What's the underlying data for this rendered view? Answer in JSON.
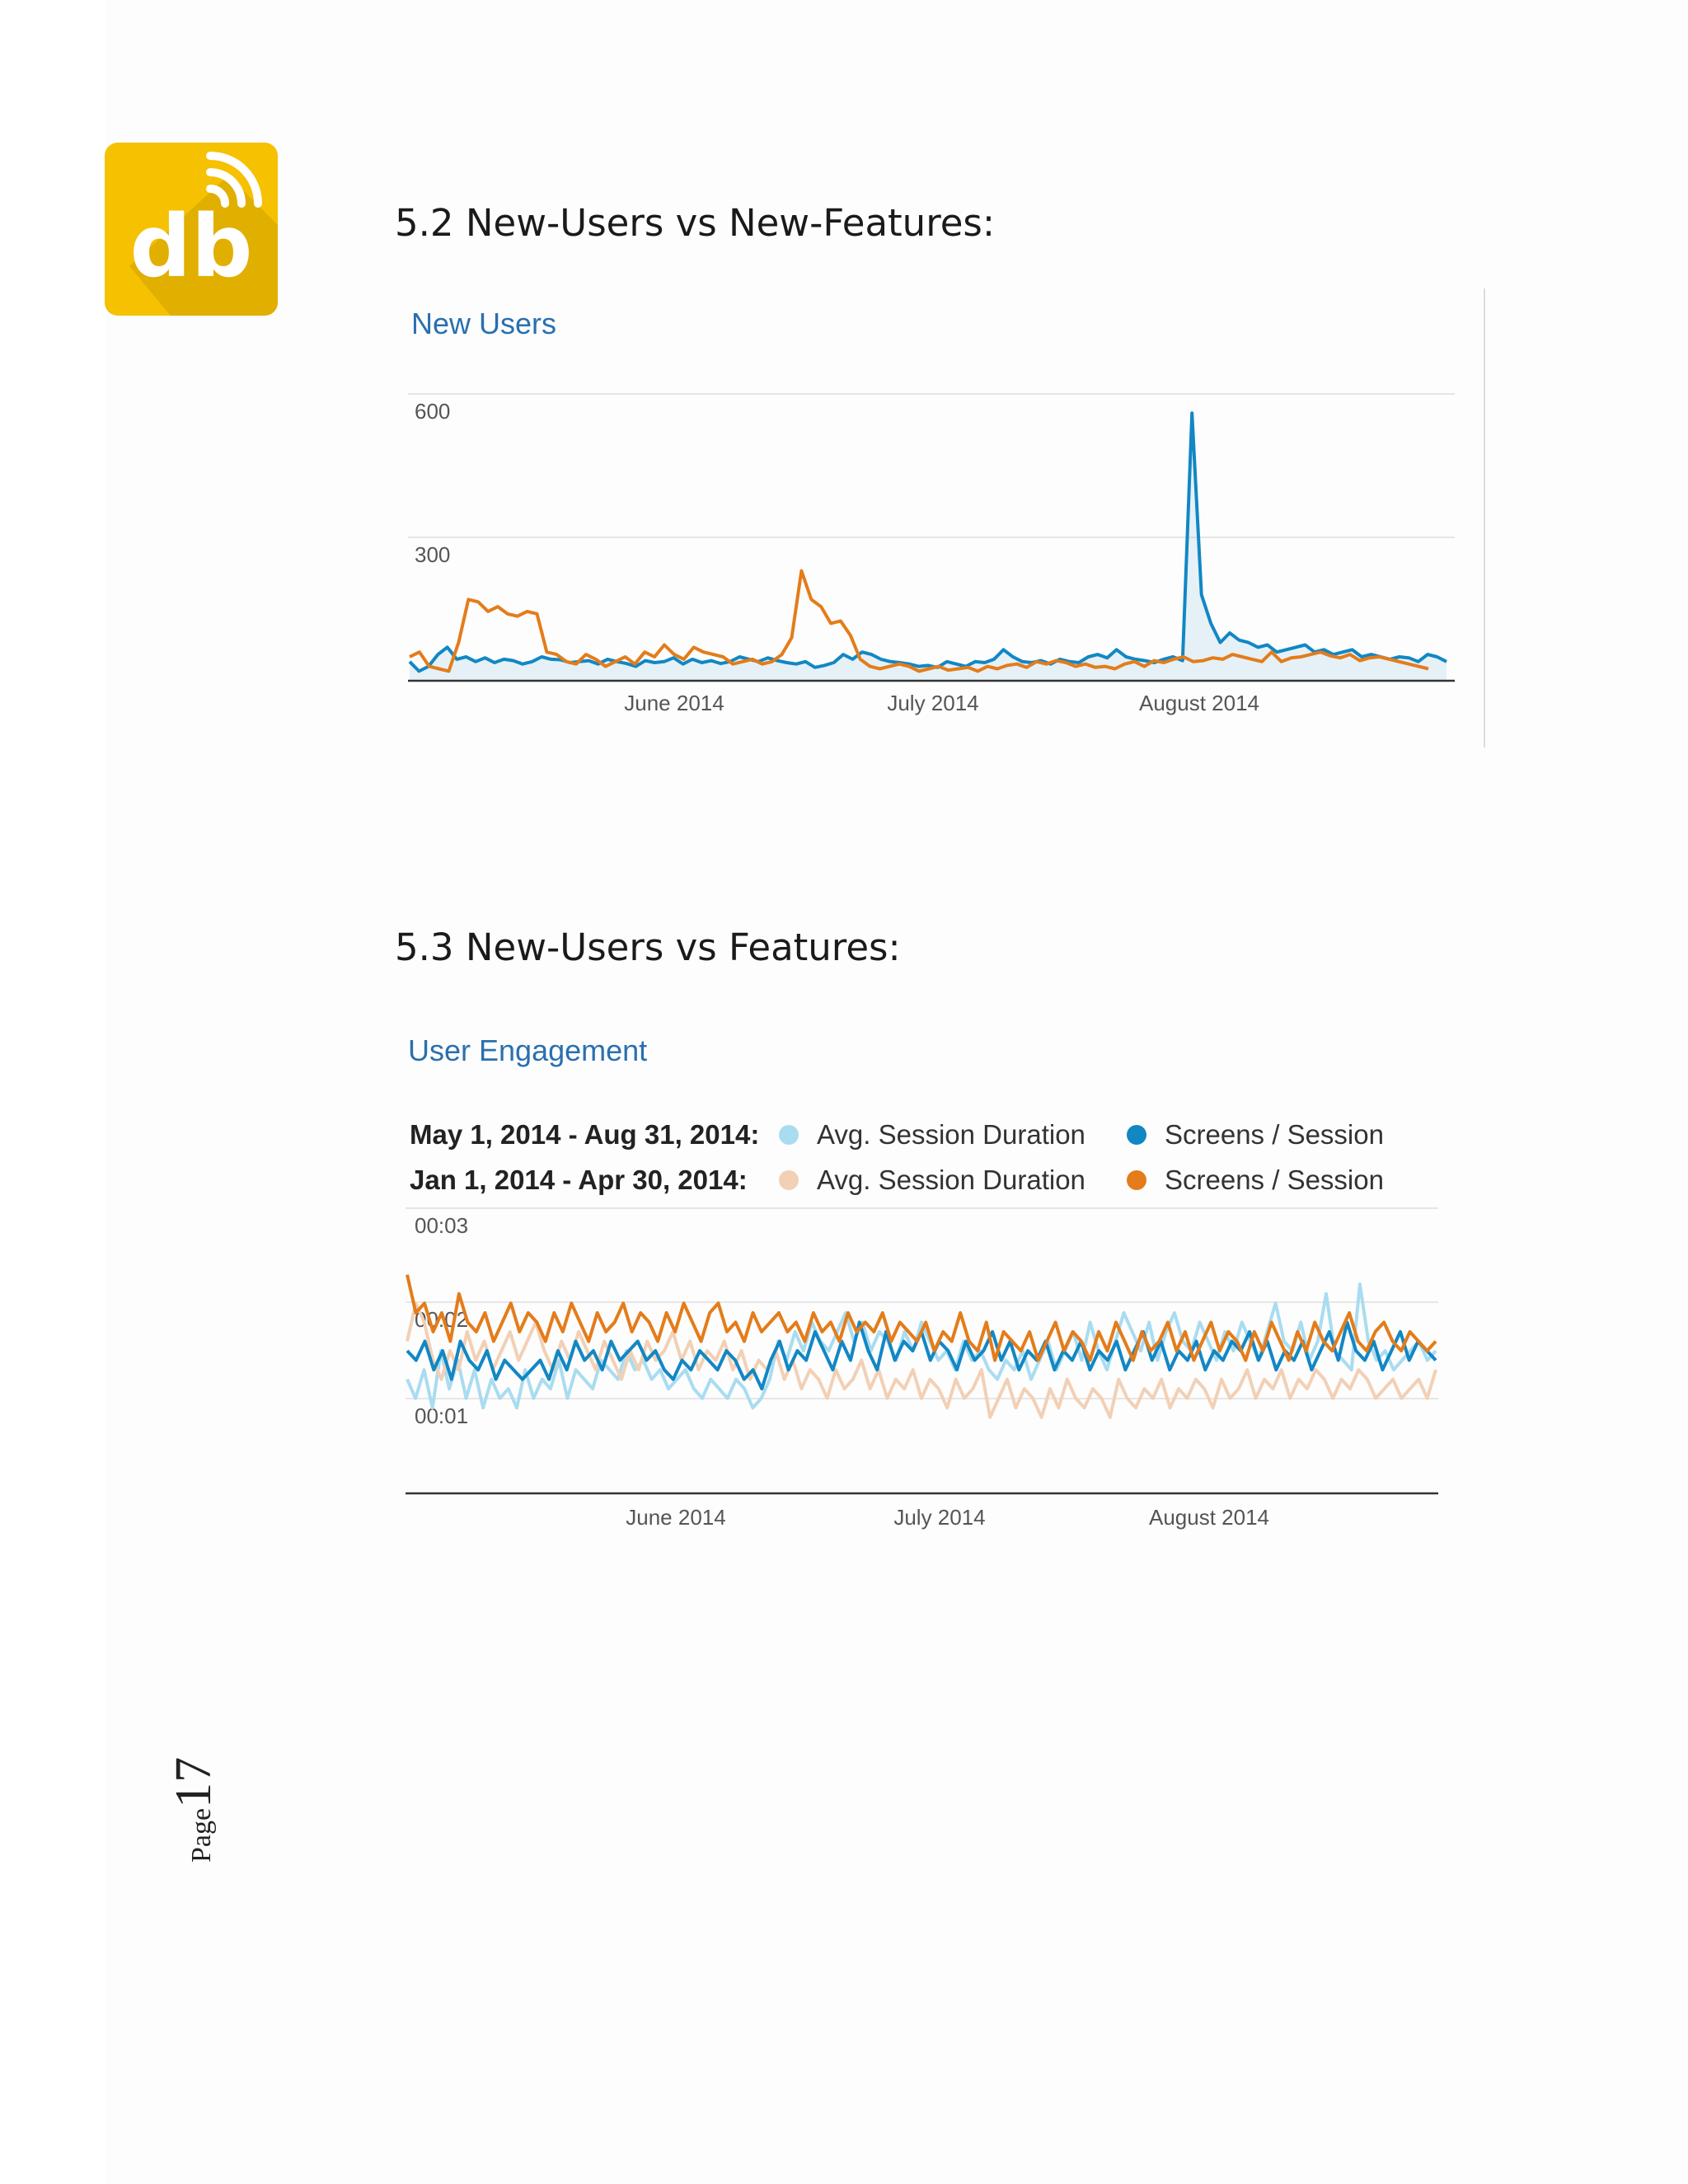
{
  "colors": {
    "logo_yellow": "#f5c100",
    "logo_shadow": "#d9a800",
    "chart_title_blue": "#2a6fb0",
    "series_blue": "#1287c4",
    "series_orange": "#e47c1a",
    "series_light_blue": "#a9dcf0",
    "series_light_orange": "#f2d0b5"
  },
  "logo": {
    "text": "db",
    "icon": "wifi-signal-icon"
  },
  "section_52": {
    "heading": "5.2  New-Users vs New-Features:"
  },
  "section_53": {
    "heading": "5.3 New-Users vs Features:"
  },
  "page_number": {
    "word": "Page",
    "number": "17"
  },
  "chart_data": [
    {
      "type": "line",
      "title": "New Users",
      "x_ticks": [
        "June 2014",
        "July 2014",
        "August 2014"
      ],
      "y_ticks": [
        "600",
        "300"
      ],
      "ylim": [
        0,
        600
      ],
      "grid": true,
      "series": [
        {
          "color": "#1287c4",
          "area": true,
          "values": [
            40,
            20,
            30,
            55,
            70,
            45,
            50,
            40,
            48,
            38,
            45,
            42,
            35,
            40,
            50,
            45,
            44,
            38,
            40,
            42,
            35,
            45,
            40,
            36,
            30,
            42,
            38,
            40,
            48,
            35,
            45,
            38,
            42,
            36,
            40,
            50,
            45,
            40,
            48,
            42,
            38,
            35,
            40,
            28,
            32,
            38,
            55,
            45,
            60,
            55,
            45,
            40,
            38,
            35,
            30,
            32,
            28,
            40,
            35,
            30,
            40,
            38,
            45,
            65,
            50,
            40,
            38,
            42,
            35,
            45,
            40,
            38,
            50,
            55,
            48,
            65,
            50,
            45,
            42,
            38,
            45,
            50,
            42,
            560,
            180,
            120,
            80,
            100,
            85,
            80,
            70,
            75,
            60,
            65,
            70,
            75,
            60,
            65,
            55,
            60,
            65,
            50,
            55,
            50,
            45,
            50,
            48,
            40,
            55,
            50,
            40
          ]
        },
        {
          "color": "#e47c1a",
          "area": false,
          "values": [
            50,
            60,
            30,
            25,
            20,
            80,
            170,
            165,
            145,
            155,
            140,
            135,
            145,
            140,
            60,
            55,
            40,
            35,
            55,
            45,
            30,
            40,
            50,
            35,
            60,
            50,
            75,
            55,
            45,
            70,
            60,
            55,
            50,
            35,
            40,
            45,
            35,
            40,
            55,
            90,
            230,
            170,
            155,
            120,
            125,
            95,
            45,
            30,
            25,
            30,
            35,
            30,
            20,
            25,
            30,
            22,
            25,
            28,
            20,
            30,
            25,
            32,
            35,
            28,
            40,
            35,
            42,
            38,
            30,
            35,
            28,
            30,
            25,
            35,
            40,
            30,
            42,
            38,
            45,
            50,
            40,
            42,
            48,
            45,
            55,
            50,
            45,
            40,
            60,
            40,
            48,
            50,
            55,
            60,
            52,
            48,
            55,
            42,
            48,
            50,
            45,
            40,
            35,
            30,
            25
          ]
        }
      ]
    },
    {
      "type": "line",
      "title": "User Engagement",
      "legend": [
        {
          "range": "May 1, 2014 - Aug 31, 2014:",
          "items": [
            {
              "name": "Avg. Session Duration",
              "color": "#a9dcf0"
            },
            {
              "name": "Screens / Session",
              "color": "#1287c4"
            }
          ]
        },
        {
          "range": "Jan 1, 2014 - Apr 30, 2014:",
          "items": [
            {
              "name": "Avg. Session Duration",
              "color": "#f2d0b5"
            },
            {
              "name": "Screens / Session",
              "color": "#e47c1a"
            }
          ]
        }
      ],
      "x_ticks": [
        "June 2014",
        "July 2014",
        "August 2014"
      ],
      "y_ticks": [
        "00:03",
        "00:02",
        "00:01"
      ],
      "ylim_seconds": [
        0,
        3
      ],
      "grid": true,
      "series": [
        {
          "name": "Avg. Session Duration",
          "period": "May 1, 2014 - Aug 31, 2014",
          "color": "#a9dcf0",
          "values_seconds": [
            1.2,
            1.0,
            1.3,
            0.9,
            1.5,
            1.1,
            1.4,
            1.0,
            1.3,
            0.9,
            1.2,
            1.0,
            1.1,
            0.9,
            1.3,
            1.0,
            1.2,
            1.1,
            1.4,
            1.0,
            1.3,
            1.2,
            1.1,
            1.4,
            1.3,
            1.2,
            1.5,
            1.3,
            1.4,
            1.2,
            1.3,
            1.1,
            1.2,
            1.3,
            1.1,
            1.0,
            1.2,
            1.1,
            1.0,
            1.2,
            1.1,
            0.9,
            1.0,
            1.2,
            1.6,
            1.4,
            1.7,
            1.5,
            1.8,
            1.6,
            1.5,
            1.7,
            1.9,
            1.6,
            1.8,
            1.5,
            1.7,
            1.6,
            1.4,
            1.7,
            1.5,
            1.8,
            1.6,
            1.4,
            1.5,
            1.3,
            1.6,
            1.4,
            1.5,
            1.3,
            1.2,
            1.4,
            1.3,
            1.5,
            1.2,
            1.4,
            1.6,
            1.3,
            1.5,
            1.7,
            1.4,
            1.8,
            1.5,
            1.3,
            1.6,
            1.9,
            1.7,
            1.5,
            1.8,
            1.4,
            1.7,
            1.9,
            1.6,
            1.5,
            1.8,
            1.6,
            1.4,
            1.7,
            1.5,
            1.8,
            1.6,
            1.4,
            1.7,
            2.0,
            1.6,
            1.5,
            1.8,
            1.4,
            1.6,
            2.1,
            1.5,
            1.4,
            1.3,
            2.2,
            1.6,
            1.4,
            1.5,
            1.3,
            1.4,
            1.5,
            1.6,
            1.4,
            1.5
          ]
        },
        {
          "name": "Avg. Session Duration",
          "period": "Jan 1, 2014 - Apr 30, 2014",
          "color": "#f2d0b5",
          "values_seconds": [
            1.6,
            2.0,
            1.8,
            1.4,
            1.2,
            1.5,
            1.3,
            1.7,
            1.4,
            1.6,
            1.3,
            1.5,
            1.7,
            1.4,
            1.6,
            1.8,
            1.5,
            1.3,
            1.6,
            1.4,
            1.7,
            1.5,
            1.3,
            1.6,
            1.4,
            1.2,
            1.5,
            1.3,
            1.6,
            1.4,
            1.5,
            1.7,
            1.4,
            1.6,
            1.3,
            1.5,
            1.4,
            1.6,
            1.3,
            1.5,
            1.2,
            1.4,
            1.3,
            1.5,
            1.2,
            1.4,
            1.1,
            1.3,
            1.2,
            1.0,
            1.3,
            1.1,
            1.2,
            1.4,
            1.1,
            1.3,
            1.0,
            1.2,
            1.1,
            1.3,
            1.0,
            1.2,
            1.1,
            0.9,
            1.2,
            1.0,
            1.1,
            1.3,
            0.8,
            1.0,
            1.2,
            0.9,
            1.1,
            1.0,
            0.8,
            1.1,
            0.9,
            1.2,
            1.0,
            0.9,
            1.1,
            1.0,
            0.8,
            1.2,
            1.0,
            0.9,
            1.1,
            1.0,
            1.2,
            0.9,
            1.1,
            1.0,
            1.2,
            1.1,
            0.9,
            1.2,
            1.0,
            1.1,
            1.3,
            1.0,
            1.2,
            1.1,
            1.3,
            1.0,
            1.2,
            1.1,
            1.3,
            1.2,
            1.0,
            1.2,
            1.1,
            1.3,
            1.2,
            1.0,
            1.1,
            1.2,
            1.0,
            1.1,
            1.2,
            1.0,
            1.3
          ]
        },
        {
          "name": "Screens / Session",
          "period": "May 1, 2014 - Aug 31, 2014",
          "color": "#1287c4",
          "values_seconds": [
            1.5,
            1.4,
            1.6,
            1.3,
            1.5,
            1.2,
            1.6,
            1.4,
            1.3,
            1.5,
            1.2,
            1.4,
            1.3,
            1.2,
            1.3,
            1.4,
            1.2,
            1.5,
            1.3,
            1.6,
            1.4,
            1.5,
            1.3,
            1.6,
            1.4,
            1.5,
            1.6,
            1.4,
            1.5,
            1.3,
            1.2,
            1.4,
            1.3,
            1.5,
            1.4,
            1.3,
            1.5,
            1.4,
            1.2,
            1.3,
            1.1,
            1.4,
            1.6,
            1.3,
            1.5,
            1.4,
            1.7,
            1.5,
            1.3,
            1.6,
            1.4,
            1.8,
            1.5,
            1.3,
            1.7,
            1.4,
            1.6,
            1.5,
            1.7,
            1.4,
            1.6,
            1.5,
            1.3,
            1.6,
            1.4,
            1.5,
            1.7,
            1.4,
            1.6,
            1.3,
            1.5,
            1.4,
            1.6,
            1.3,
            1.5,
            1.4,
            1.6,
            1.3,
            1.5,
            1.4,
            1.6,
            1.3,
            1.5,
            1.7,
            1.4,
            1.6,
            1.3,
            1.5,
            1.4,
            1.6,
            1.3,
            1.5,
            1.4,
            1.6,
            1.5,
            1.7,
            1.4,
            1.6,
            1.3,
            1.5,
            1.4,
            1.6,
            1.3,
            1.5,
            1.7,
            1.4,
            1.8,
            1.5,
            1.4,
            1.6,
            1.3,
            1.5,
            1.7,
            1.4,
            1.6,
            1.5,
            1.4
          ]
        },
        {
          "name": "Screens / Session",
          "period": "Jan 1, 2014 - Apr 30, 2014",
          "color": "#e47c1a",
          "values_seconds": [
            2.3,
            1.9,
            2.0,
            1.7,
            1.9,
            1.6,
            2.1,
            1.8,
            1.7,
            1.9,
            1.6,
            1.8,
            2.0,
            1.7,
            1.9,
            1.8,
            1.6,
            1.9,
            1.7,
            2.0,
            1.8,
            1.6,
            1.9,
            1.7,
            1.8,
            2.0,
            1.7,
            1.9,
            1.8,
            1.6,
            1.9,
            1.7,
            2.0,
            1.8,
            1.6,
            1.9,
            2.0,
            1.7,
            1.8,
            1.6,
            1.9,
            1.7,
            1.8,
            1.9,
            1.7,
            1.8,
            1.6,
            1.9,
            1.7,
            1.8,
            1.6,
            1.9,
            1.7,
            1.8,
            1.7,
            1.9,
            1.6,
            1.8,
            1.7,
            1.6,
            1.8,
            1.5,
            1.7,
            1.6,
            1.9,
            1.6,
            1.5,
            1.8,
            1.4,
            1.7,
            1.6,
            1.5,
            1.7,
            1.4,
            1.6,
            1.8,
            1.5,
            1.7,
            1.6,
            1.4,
            1.7,
            1.5,
            1.8,
            1.6,
            1.4,
            1.7,
            1.5,
            1.6,
            1.8,
            1.5,
            1.7,
            1.4,
            1.6,
            1.8,
            1.5,
            1.7,
            1.6,
            1.4,
            1.7,
            1.5,
            1.8,
            1.6,
            1.4,
            1.7,
            1.5,
            1.8,
            1.6,
            1.5,
            1.7,
            1.9,
            1.6,
            1.5,
            1.7,
            1.8,
            1.6,
            1.5,
            1.7,
            1.6,
            1.5,
            1.6
          ]
        }
      ]
    }
  ]
}
